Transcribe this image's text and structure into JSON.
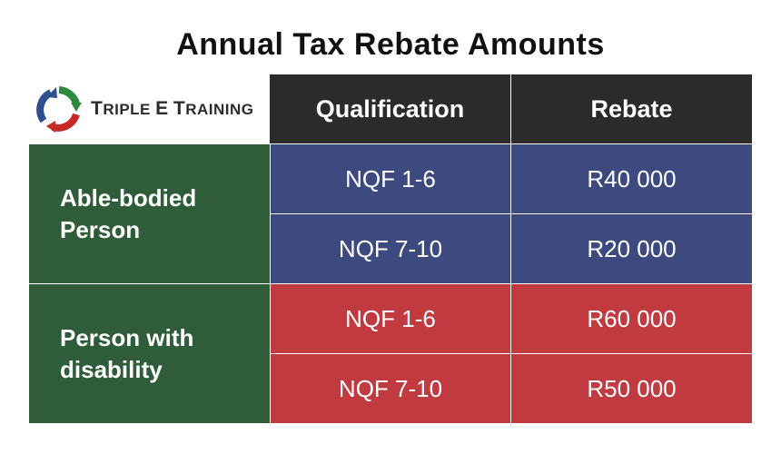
{
  "title": "Annual Tax Rebate Amounts",
  "logo": {
    "icon": "circular-arrows-icon",
    "text_first_letter": "T",
    "text_first_rest": "RIPLE",
    "text_middle": "E",
    "text_last_letter": "T",
    "text_last_rest": "RAINING",
    "colors": {
      "green": "#2e8b3e",
      "red": "#c62828",
      "blue": "#2f4f8f"
    }
  },
  "table": {
    "headers": {
      "qualification": "Qualification",
      "rebate": "Rebate"
    },
    "groups": [
      {
        "label": "Able-bodied\nPerson",
        "rows": [
          {
            "qualification": "NQF 1-6",
            "rebate": "R40 000"
          },
          {
            "qualification": "NQF 7-10",
            "rebate": "R20 000"
          }
        ]
      },
      {
        "label": "Person with\ndisability",
        "rows": [
          {
            "qualification": "NQF 1-6",
            "rebate": "R60 000"
          },
          {
            "qualification": "NQF 7-10",
            "rebate": "R50 000"
          }
        ]
      }
    ],
    "colors": {
      "header": "#2b2b2b",
      "group": "#2f5d3a",
      "able_bodied_rows": "#3d4a80",
      "disability_rows": "#c03a40"
    }
  }
}
